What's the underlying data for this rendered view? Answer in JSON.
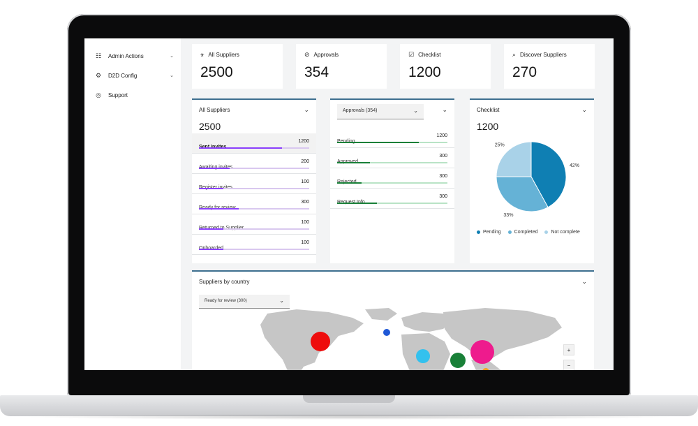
{
  "sidebar": {
    "items": [
      {
        "label": "Admin Actions",
        "icon": "admin-icon"
      },
      {
        "label": "D2D Config",
        "icon": "config-icon"
      },
      {
        "label": "Support",
        "icon": "support-icon"
      }
    ]
  },
  "kpis": [
    {
      "title": "All Suppliers",
      "value": "2500",
      "icon": "suppliers-icon"
    },
    {
      "title": "Approvals",
      "value": "354",
      "icon": "approvals-icon"
    },
    {
      "title": "Checklist",
      "value": "1200",
      "icon": "checklist-icon"
    },
    {
      "title": "Discover Suppliers",
      "value": "270",
      "icon": "discover-icon"
    }
  ],
  "suppliers_card": {
    "title": "All Suppliers",
    "value": "2500",
    "rows": [
      {
        "label": "Sent invites",
        "value": "1200",
        "fraction": 0.75
      },
      {
        "label": "Awaiting invites",
        "value": "200",
        "fraction": 0.28
      },
      {
        "label": "Register invites",
        "value": "100",
        "fraction": 0.22
      },
      {
        "label": "Ready for review",
        "value": "300",
        "fraction": 0.36
      },
      {
        "label": "Returned to Supplier",
        "value": "100",
        "fraction": 0.22
      },
      {
        "label": "Onboarded",
        "value": "100",
        "fraction": 0.22
      }
    ]
  },
  "approvals_card": {
    "select": "Approvals (354)",
    "rows": [
      {
        "label": "Pending",
        "value": "1200",
        "fraction": 0.74
      },
      {
        "label": "Approved",
        "value": "300",
        "fraction": 0.3
      },
      {
        "label": "Rejected",
        "value": "300",
        "fraction": 0.22
      },
      {
        "label": "Request Info",
        "value": "300",
        "fraction": 0.36
      }
    ]
  },
  "checklist_card": {
    "title": "Checklist",
    "value": "1200",
    "slices": [
      {
        "name": "Pending",
        "percent": 42,
        "label": "42%",
        "color": "#0f7fb3"
      },
      {
        "name": "Completed",
        "percent": 33,
        "label": "33%",
        "color": "#65b2d6"
      },
      {
        "name": "Not complete",
        "percent": 25,
        "label": "25%",
        "color": "#a9d2e8"
      }
    ],
    "legend": [
      "Pending",
      "Completed",
      "Not complete"
    ]
  },
  "map_card": {
    "title": "Suppliers by country",
    "select": "Ready for review (300)",
    "zoom_in": "+",
    "zoom_out": "−",
    "bubbles": [
      {
        "region": "north-america",
        "color": "#ee0c0c"
      },
      {
        "region": "europe",
        "color": "#1f58d6"
      },
      {
        "region": "middle-east",
        "color": "#33c1ee"
      },
      {
        "region": "india",
        "color": "#198038"
      },
      {
        "region": "east-asia",
        "color": "#ee1b8d"
      },
      {
        "region": "southeast-asia",
        "color": "#f0a020"
      }
    ]
  }
}
